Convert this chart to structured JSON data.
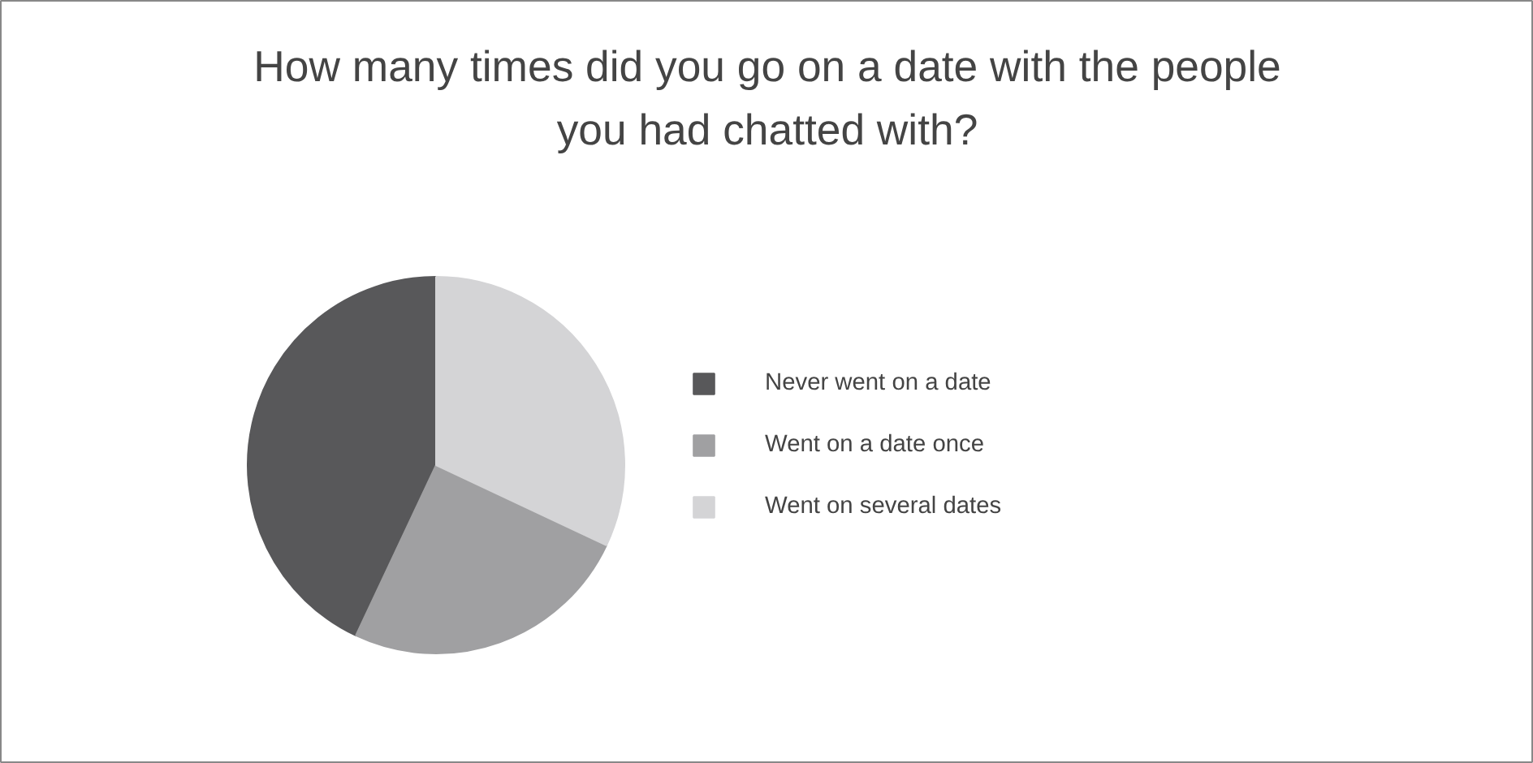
{
  "chart_data": {
    "type": "pie",
    "title": "How many times did you go on a date with the people you had chatted with?",
    "categories": [
      "Never went on a date",
      "Went on a date once",
      "Went on several dates"
    ],
    "values": [
      43,
      25,
      32
    ],
    "colors": [
      "#58585a",
      "#a0a0a2",
      "#d4d4d6"
    ],
    "legend": "right"
  }
}
